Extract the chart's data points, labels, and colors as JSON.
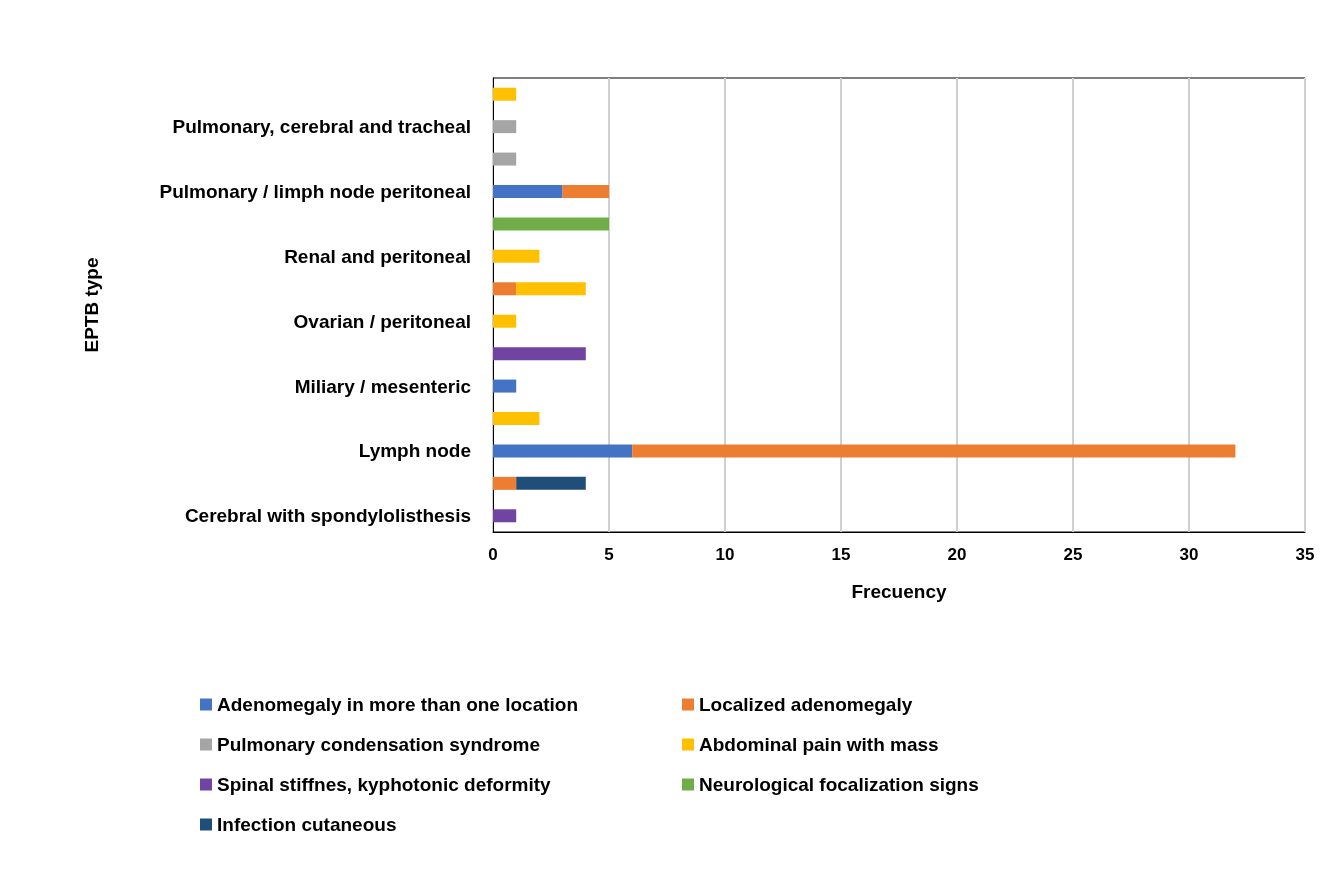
{
  "chart_data": {
    "type": "bar",
    "orientation": "horizontal",
    "stacked": true,
    "categories": [
      null,
      "Pulmonary, cerebral and tracheal",
      null,
      "Pulmonary / limph node peritoneal",
      null,
      "Renal and peritoneal",
      null,
      "Ovarian / peritoneal",
      null,
      "Miliary / mesenteric",
      null,
      "Lymph node",
      null,
      "Cerebral with spondylolisthesis"
    ],
    "series": [
      {
        "name": "Adenomegaly in more than one location",
        "color": "#4472c4",
        "values": [
          null,
          null,
          null,
          3,
          null,
          null,
          null,
          null,
          null,
          1,
          null,
          6,
          null,
          null
        ]
      },
      {
        "name": "Localized adenomegaly",
        "color": "#ed7d31",
        "values": [
          null,
          null,
          null,
          2,
          null,
          null,
          1,
          null,
          null,
          null,
          null,
          26,
          1,
          null
        ]
      },
      {
        "name": "Pulmonary condensation syndrome",
        "color": "#a5a5a5",
        "values": [
          null,
          1,
          1,
          null,
          null,
          null,
          null,
          null,
          null,
          null,
          null,
          null,
          null,
          null
        ]
      },
      {
        "name": "Abdominal pain with mass",
        "color": "#ffc000",
        "values": [
          1,
          null,
          null,
          null,
          null,
          2,
          3,
          1,
          null,
          null,
          2,
          null,
          null,
          null
        ]
      },
      {
        "name": "Spinal stiffnes, kyphotonic deformity",
        "color": "#7044a0",
        "values": [
          null,
          null,
          null,
          null,
          null,
          null,
          null,
          null,
          4,
          null,
          null,
          null,
          null,
          1
        ]
      },
      {
        "name": "Neurological focalization signs",
        "color": "#70ad47",
        "values": [
          null,
          null,
          null,
          null,
          5,
          null,
          null,
          null,
          null,
          null,
          null,
          null,
          null,
          null
        ]
      },
      {
        "name": "Infection cutaneous",
        "color": "#1f4e79",
        "values": [
          null,
          null,
          null,
          null,
          null,
          null,
          null,
          null,
          null,
          null,
          null,
          null,
          3,
          null
        ]
      }
    ],
    "xlim": [
      0,
      35
    ],
    "xticks": [
      0,
      5,
      10,
      15,
      20,
      25,
      30,
      35
    ],
    "xlabel": "Frecuency",
    "ylabel": "EPTB type",
    "grid": "x",
    "legend": "bottom"
  }
}
